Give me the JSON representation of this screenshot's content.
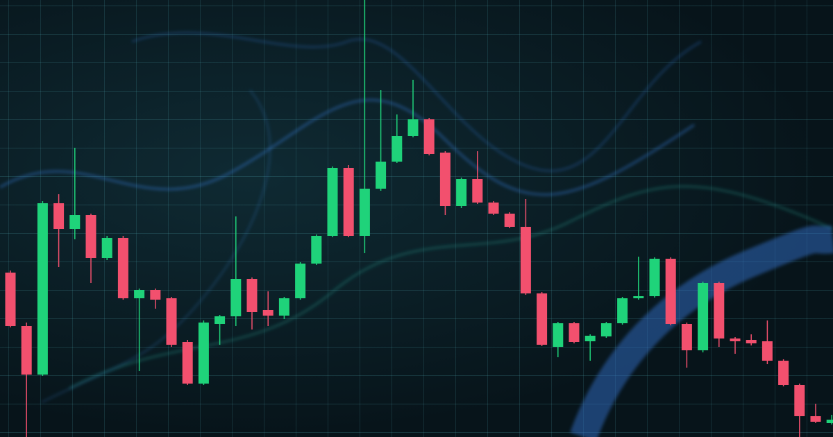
{
  "chart_data": {
    "type": "candlestick",
    "up_color": "#1fd37a",
    "down_color": "#f2506e",
    "ylim": [
      0,
      630
    ],
    "open": [
      237,
      160,
      90,
      337,
      300,
      320,
      258,
      287,
      200,
      212,
      200,
      137,
      77,
      163,
      174,
      228,
      183,
      175,
      200,
      250,
      290,
      388,
      290,
      358,
      397,
      434,
      458,
      410,
      333,
      372,
      338,
      322,
      303,
      207,
      130,
      164,
      138,
      145,
      164,
      200,
      203,
      257,
      163,
      125,
      222,
      142,
      140,
      138,
      110,
      75,
      30,
      20
    ],
    "high": [
      240,
      165,
      340,
      350,
      417,
      322,
      290,
      290,
      214,
      214,
      202,
      140,
      168,
      176,
      318,
      230,
      210,
      202,
      252,
      292,
      390,
      392,
      630,
      500,
      465,
      515,
      460,
      412,
      374,
      412,
      340,
      324,
      343,
      209,
      166,
      166,
      148,
      166,
      202,
      260,
      259,
      259,
      165,
      224,
      224,
      144,
      148,
      168,
      112,
      77,
      48,
      32
    ],
    "low": [
      158,
      0,
      88,
      245,
      285,
      222,
      255,
      198,
      95,
      185,
      130,
      75,
      75,
      133,
      160,
      155,
      160,
      170,
      198,
      248,
      288,
      288,
      265,
      355,
      395,
      432,
      406,
      320,
      330,
      336,
      320,
      301,
      205,
      131,
      115,
      135,
      110,
      143,
      162,
      198,
      201,
      161,
      100,
      122,
      130,
      120,
      132,
      105,
      73,
      0,
      20,
      18
    ],
    "close": [
      160,
      90,
      337,
      300,
      320,
      258,
      287,
      200,
      212,
      198,
      133,
      77,
      165,
      174,
      228,
      180,
      175,
      200,
      250,
      290,
      388,
      290,
      358,
      397,
      434,
      458,
      408,
      333,
      372,
      338,
      322,
      303,
      207,
      133,
      164,
      137,
      146,
      164,
      200,
      203,
      257,
      163,
      125,
      222,
      142,
      138,
      135,
      110,
      75,
      30,
      22,
      25
    ]
  }
}
